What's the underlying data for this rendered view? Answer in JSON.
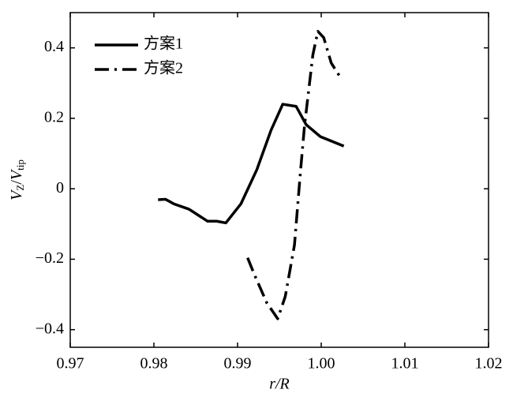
{
  "chart_data": {
    "type": "line",
    "xlabel": "r/R",
    "ylabel": [
      "V",
      "Z",
      "/",
      "V",
      "tip"
    ],
    "xlim": [
      0.97,
      1.02
    ],
    "ylim": [
      -0.45,
      0.5
    ],
    "xticks": [
      0.97,
      0.98,
      0.99,
      {
        "value": 1.0,
        "label": "1.00"
      },
      1.01,
      1.02
    ],
    "yticks": [
      {
        "value": -0.4,
        "label": "−0.4"
      },
      {
        "value": -0.2,
        "label": "−0.2"
      },
      0,
      0.2,
      0.4
    ],
    "legend": "upper left",
    "series": [
      {
        "name": "方案1",
        "color": "#000000",
        "style": "solid",
        "x": [
          0.9805,
          0.9814,
          0.9824,
          0.9842,
          0.9864,
          0.9875,
          0.9886,
          0.9904,
          0.9923,
          0.994,
          0.9954,
          0.997,
          0.9982,
          0.9999,
          1.0027
        ],
        "values": [
          -0.031,
          -0.03,
          -0.043,
          -0.058,
          -0.092,
          -0.092,
          -0.097,
          -0.043,
          0.054,
          0.166,
          0.24,
          0.234,
          0.182,
          0.148,
          0.121
        ]
      },
      {
        "name": "方案2",
        "color": "#000000",
        "style": "dashdot",
        "x": [
          0.9912,
          0.992,
          0.9935,
          0.9948,
          0.9957,
          0.9968,
          0.9975,
          0.998,
          0.999,
          0.9996,
          1.0003,
          1.0012,
          1.0024
        ],
        "values": [
          -0.196,
          -0.243,
          -0.324,
          -0.369,
          -0.306,
          -0.16,
          0.043,
          0.178,
          0.38,
          0.447,
          0.429,
          0.357,
          0.312
        ]
      }
    ]
  }
}
